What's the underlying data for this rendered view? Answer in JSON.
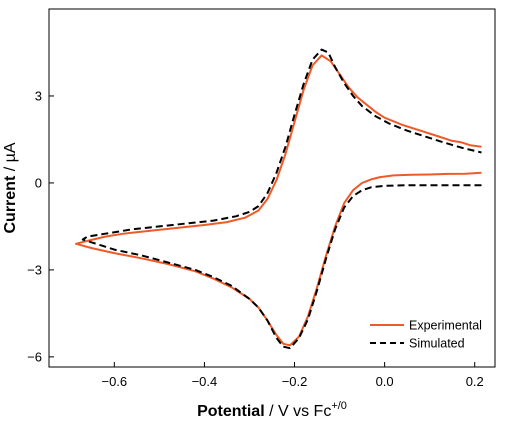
{
  "chart_data": {
    "type": "line",
    "xlabel": {
      "bold": "Potential",
      "rest": " / V vs Fc",
      "sup": "+/0"
    },
    "ylabel": {
      "bold": "Current",
      "rest": " / µA"
    },
    "xlim": [
      -0.745,
      0.245
    ],
    "ylim": [
      -6.35,
      6.0
    ],
    "xticks": [
      -0.6,
      -0.4,
      -0.2,
      0.0,
      0.2
    ],
    "xtick_labels": [
      "−0.6",
      "−0.4",
      "−0.2",
      "0.0",
      "0.2"
    ],
    "yticks": [
      -6,
      -3,
      0,
      3
    ],
    "ytick_labels": [
      "−6",
      "−3",
      "0",
      "3"
    ],
    "grid": false,
    "legend_position": "bottom-right",
    "series": [
      {
        "name": "Experimental",
        "color": "#f05a28",
        "dash": "solid",
        "points": [
          [
            0.215,
            0.35
          ],
          [
            0.18,
            0.32
          ],
          [
            0.14,
            0.31
          ],
          [
            0.1,
            0.29
          ],
          [
            0.06,
            0.28
          ],
          [
            0.02,
            0.26
          ],
          [
            -0.01,
            0.2
          ],
          [
            -0.03,
            0.12
          ],
          [
            -0.05,
            0.0
          ],
          [
            -0.07,
            -0.25
          ],
          [
            -0.09,
            -0.7
          ],
          [
            -0.11,
            -1.5
          ],
          [
            -0.13,
            -2.5
          ],
          [
            -0.15,
            -3.6
          ],
          [
            -0.17,
            -4.6
          ],
          [
            -0.19,
            -5.3
          ],
          [
            -0.21,
            -5.6
          ],
          [
            -0.225,
            -5.55
          ],
          [
            -0.24,
            -5.25
          ],
          [
            -0.26,
            -4.75
          ],
          [
            -0.28,
            -4.3
          ],
          [
            -0.3,
            -4.0
          ],
          [
            -0.34,
            -3.6
          ],
          [
            -0.38,
            -3.3
          ],
          [
            -0.42,
            -3.05
          ],
          [
            -0.48,
            -2.8
          ],
          [
            -0.54,
            -2.6
          ],
          [
            -0.6,
            -2.42
          ],
          [
            -0.65,
            -2.25
          ],
          [
            -0.685,
            -2.1
          ],
          [
            -0.66,
            -2.0
          ],
          [
            -0.62,
            -1.85
          ],
          [
            -0.58,
            -1.75
          ],
          [
            -0.52,
            -1.65
          ],
          [
            -0.46,
            -1.55
          ],
          [
            -0.4,
            -1.45
          ],
          [
            -0.35,
            -1.35
          ],
          [
            -0.31,
            -1.2
          ],
          [
            -0.28,
            -0.95
          ],
          [
            -0.26,
            -0.55
          ],
          [
            -0.24,
            0.1
          ],
          [
            -0.22,
            1.0
          ],
          [
            -0.2,
            2.1
          ],
          [
            -0.18,
            3.2
          ],
          [
            -0.16,
            4.05
          ],
          [
            -0.14,
            4.4
          ],
          [
            -0.12,
            4.2
          ],
          [
            -0.1,
            3.75
          ],
          [
            -0.08,
            3.3
          ],
          [
            -0.06,
            2.95
          ],
          [
            -0.04,
            2.7
          ],
          [
            -0.02,
            2.45
          ],
          [
            0.0,
            2.25
          ],
          [
            0.04,
            2.0
          ],
          [
            0.08,
            1.8
          ],
          [
            0.12,
            1.6
          ],
          [
            0.15,
            1.45
          ],
          [
            0.17,
            1.4
          ],
          [
            0.19,
            1.3
          ],
          [
            0.215,
            1.25
          ]
        ]
      },
      {
        "name": "Simulated",
        "color": "#000000",
        "dash": "dashed",
        "points": [
          [
            0.215,
            -0.08
          ],
          [
            0.16,
            -0.08
          ],
          [
            0.1,
            -0.08
          ],
          [
            0.05,
            -0.08
          ],
          [
            0.0,
            -0.1
          ],
          [
            -0.03,
            -0.15
          ],
          [
            -0.05,
            -0.25
          ],
          [
            -0.07,
            -0.45
          ],
          [
            -0.09,
            -0.85
          ],
          [
            -0.11,
            -1.6
          ],
          [
            -0.13,
            -2.6
          ],
          [
            -0.15,
            -3.7
          ],
          [
            -0.17,
            -4.7
          ],
          [
            -0.19,
            -5.35
          ],
          [
            -0.21,
            -5.7
          ],
          [
            -0.225,
            -5.65
          ],
          [
            -0.24,
            -5.35
          ],
          [
            -0.26,
            -4.75
          ],
          [
            -0.28,
            -4.3
          ],
          [
            -0.3,
            -4.0
          ],
          [
            -0.34,
            -3.55
          ],
          [
            -0.38,
            -3.25
          ],
          [
            -0.42,
            -3.0
          ],
          [
            -0.48,
            -2.75
          ],
          [
            -0.54,
            -2.5
          ],
          [
            -0.6,
            -2.3
          ],
          [
            -0.65,
            -2.05
          ],
          [
            -0.67,
            -1.95
          ],
          [
            -0.66,
            -1.85
          ],
          [
            -0.62,
            -1.75
          ],
          [
            -0.56,
            -1.6
          ],
          [
            -0.5,
            -1.5
          ],
          [
            -0.44,
            -1.4
          ],
          [
            -0.38,
            -1.3
          ],
          [
            -0.33,
            -1.15
          ],
          [
            -0.3,
            -1.0
          ],
          [
            -0.28,
            -0.8
          ],
          [
            -0.26,
            -0.35
          ],
          [
            -0.24,
            0.35
          ],
          [
            -0.22,
            1.25
          ],
          [
            -0.2,
            2.35
          ],
          [
            -0.18,
            3.4
          ],
          [
            -0.16,
            4.25
          ],
          [
            -0.14,
            4.6
          ],
          [
            -0.125,
            4.5
          ],
          [
            -0.11,
            4.0
          ],
          [
            -0.09,
            3.45
          ],
          [
            -0.07,
            3.0
          ],
          [
            -0.05,
            2.65
          ],
          [
            -0.02,
            2.3
          ],
          [
            0.01,
            2.05
          ],
          [
            0.05,
            1.8
          ],
          [
            0.09,
            1.6
          ],
          [
            0.13,
            1.4
          ],
          [
            0.17,
            1.22
          ],
          [
            0.215,
            1.05
          ]
        ]
      }
    ]
  }
}
